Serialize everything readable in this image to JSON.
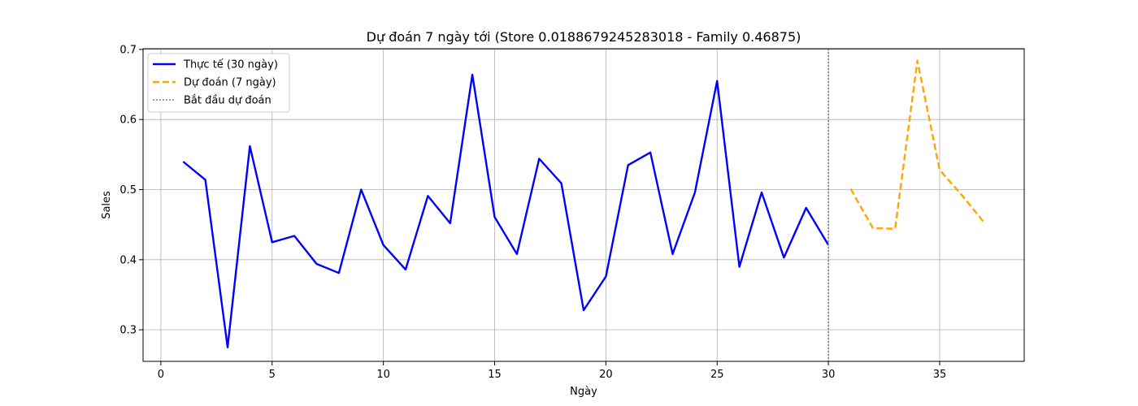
{
  "chart_data": {
    "type": "line",
    "title": "Dự đoán 7 ngày tới (Store 0.0188679245283018 - Family 0.46875)",
    "xlabel": "Ngày",
    "ylabel": "Sales",
    "xlim": [
      -0.8,
      38.8
    ],
    "ylim": [
      0.255,
      0.701
    ],
    "xticks": [
      0,
      5,
      10,
      15,
      20,
      25,
      30,
      35
    ],
    "yticks": [
      0.3,
      0.4,
      0.5,
      0.6,
      0.7
    ],
    "grid": true,
    "legend_position": "top-left",
    "series": [
      {
        "name": "Thực tế (30 ngày)",
        "color": "#0000ff",
        "style": "solid",
        "x": [
          1,
          2,
          3,
          4,
          5,
          6,
          7,
          8,
          9,
          10,
          11,
          12,
          13,
          14,
          15,
          16,
          17,
          18,
          19,
          20,
          21,
          22,
          23,
          24,
          25,
          26,
          27,
          28,
          29,
          30
        ],
        "y": [
          0.54,
          0.514,
          0.275,
          0.562,
          0.425,
          0.434,
          0.394,
          0.381,
          0.5,
          0.421,
          0.386,
          0.491,
          0.452,
          0.664,
          0.461,
          0.408,
          0.544,
          0.509,
          0.328,
          0.376,
          0.535,
          0.553,
          0.408,
          0.496,
          0.655,
          0.39,
          0.496,
          0.403,
          0.474,
          0.421
        ]
      },
      {
        "name": "Dự đoán (7 ngày)",
        "color": "#ffa500",
        "style": "dashed",
        "x": [
          31,
          32,
          33,
          34,
          35,
          36,
          37
        ],
        "y": [
          0.501,
          0.445,
          0.444,
          0.684,
          0.528,
          0.492,
          0.453
        ]
      }
    ],
    "vline": {
      "name": "Bắt đầu dự đoán",
      "x": 30,
      "color": "#808080",
      "style": "dotted"
    }
  }
}
